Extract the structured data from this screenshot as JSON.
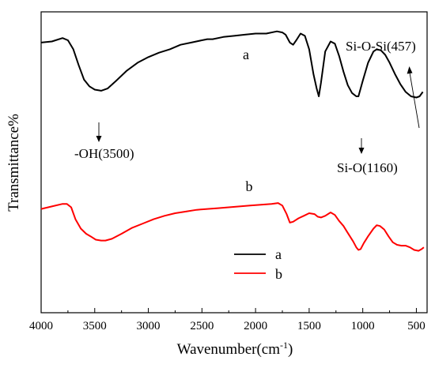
{
  "chart_data": {
    "type": "line",
    "xlabel": "Wavenumber(cm",
    "xlabel_sup": "-1",
    "xlabel_close": ")",
    "ylabel": "Transmittance%",
    "xlim": [
      4000,
      400
    ],
    "x_ticks": [
      4000,
      3500,
      3000,
      2500,
      2000,
      1500,
      1000,
      500
    ],
    "y_ticks_shown": false,
    "legend": {
      "placement": "lower-center",
      "entries": [
        "a",
        "b"
      ]
    },
    "annotations": [
      {
        "text": "-OH(3500)",
        "series": "a",
        "x": 3440
      },
      {
        "text": "Si-O(1160)",
        "series": "a",
        "x": 1040
      },
      {
        "text": "Si-O-Si(457)",
        "series": "a",
        "x": 480
      }
    ],
    "series_labels": [
      "a",
      "b"
    ],
    "series": [
      {
        "name": "a",
        "color": "#000000",
        "points": [
          [
            4000,
            0.86
          ],
          [
            3900,
            0.87
          ],
          [
            3800,
            0.9
          ],
          [
            3750,
            0.88
          ],
          [
            3700,
            0.8
          ],
          [
            3650,
            0.66
          ],
          [
            3600,
            0.53
          ],
          [
            3550,
            0.47
          ],
          [
            3500,
            0.44
          ],
          [
            3440,
            0.43
          ],
          [
            3380,
            0.45
          ],
          [
            3300,
            0.52
          ],
          [
            3200,
            0.61
          ],
          [
            3100,
            0.68
          ],
          [
            3000,
            0.73
          ],
          [
            2900,
            0.77
          ],
          [
            2800,
            0.8
          ],
          [
            2700,
            0.84
          ],
          [
            2600,
            0.86
          ],
          [
            2500,
            0.88
          ],
          [
            2450,
            0.89
          ],
          [
            2400,
            0.89
          ],
          [
            2300,
            0.91
          ],
          [
            2200,
            0.92
          ],
          [
            2100,
            0.93
          ],
          [
            2000,
            0.94
          ],
          [
            1900,
            0.94
          ],
          [
            1800,
            0.96
          ],
          [
            1750,
            0.95
          ],
          [
            1720,
            0.93
          ],
          [
            1680,
            0.86
          ],
          [
            1650,
            0.84
          ],
          [
            1620,
            0.88
          ],
          [
            1580,
            0.94
          ],
          [
            1540,
            0.92
          ],
          [
            1500,
            0.8
          ],
          [
            1460,
            0.58
          ],
          [
            1430,
            0.45
          ],
          [
            1410,
            0.38
          ],
          [
            1390,
            0.5
          ],
          [
            1350,
            0.78
          ],
          [
            1300,
            0.87
          ],
          [
            1260,
            0.85
          ],
          [
            1220,
            0.74
          ],
          [
            1180,
            0.6
          ],
          [
            1140,
            0.48
          ],
          [
            1100,
            0.41
          ],
          [
            1060,
            0.38
          ],
          [
            1040,
            0.38
          ],
          [
            1000,
            0.52
          ],
          [
            950,
            0.68
          ],
          [
            900,
            0.78
          ],
          [
            870,
            0.8
          ],
          [
            830,
            0.79
          ],
          [
            790,
            0.75
          ],
          [
            750,
            0.68
          ],
          [
            700,
            0.58
          ],
          [
            650,
            0.49
          ],
          [
            600,
            0.42
          ],
          [
            550,
            0.38
          ],
          [
            500,
            0.37
          ],
          [
            470,
            0.38
          ],
          [
            440,
            0.42
          ]
        ]
      },
      {
        "name": "b",
        "color": "#ff0000",
        "points": [
          [
            4000,
            0.42
          ],
          [
            3900,
            0.45
          ],
          [
            3800,
            0.48
          ],
          [
            3760,
            0.48
          ],
          [
            3720,
            0.44
          ],
          [
            3680,
            0.3
          ],
          [
            3630,
            0.19
          ],
          [
            3580,
            0.13
          ],
          [
            3540,
            0.1
          ],
          [
            3490,
            0.06
          ],
          [
            3440,
            0.05
          ],
          [
            3400,
            0.05
          ],
          [
            3340,
            0.07
          ],
          [
            3250,
            0.13
          ],
          [
            3150,
            0.2
          ],
          [
            3050,
            0.25
          ],
          [
            2950,
            0.3
          ],
          [
            2850,
            0.34
          ],
          [
            2750,
            0.37
          ],
          [
            2650,
            0.39
          ],
          [
            2550,
            0.41
          ],
          [
            2450,
            0.42
          ],
          [
            2350,
            0.43
          ],
          [
            2250,
            0.44
          ],
          [
            2150,
            0.45
          ],
          [
            2050,
            0.46
          ],
          [
            1950,
            0.47
          ],
          [
            1850,
            0.48
          ],
          [
            1790,
            0.49
          ],
          [
            1750,
            0.46
          ],
          [
            1710,
            0.36
          ],
          [
            1680,
            0.26
          ],
          [
            1650,
            0.27
          ],
          [
            1600,
            0.31
          ],
          [
            1550,
            0.34
          ],
          [
            1500,
            0.37
          ],
          [
            1450,
            0.36
          ],
          [
            1420,
            0.33
          ],
          [
            1390,
            0.32
          ],
          [
            1350,
            0.34
          ],
          [
            1300,
            0.38
          ],
          [
            1260,
            0.35
          ],
          [
            1220,
            0.28
          ],
          [
            1180,
            0.22
          ],
          [
            1150,
            0.16
          ],
          [
            1120,
            0.1
          ],
          [
            1090,
            0.04
          ],
          [
            1060,
            -0.03
          ],
          [
            1040,
            -0.06
          ],
          [
            1020,
            -0.05
          ],
          [
            990,
            0.02
          ],
          [
            950,
            0.1
          ],
          [
            900,
            0.19
          ],
          [
            870,
            0.23
          ],
          [
            840,
            0.22
          ],
          [
            800,
            0.18
          ],
          [
            760,
            0.1
          ],
          [
            720,
            0.03
          ],
          [
            680,
            0.0
          ],
          [
            640,
            -0.01
          ],
          [
            600,
            -0.01
          ],
          [
            560,
            -0.03
          ],
          [
            520,
            -0.06
          ],
          [
            480,
            -0.07
          ],
          [
            450,
            -0.05
          ],
          [
            430,
            -0.03
          ]
        ]
      }
    ]
  }
}
